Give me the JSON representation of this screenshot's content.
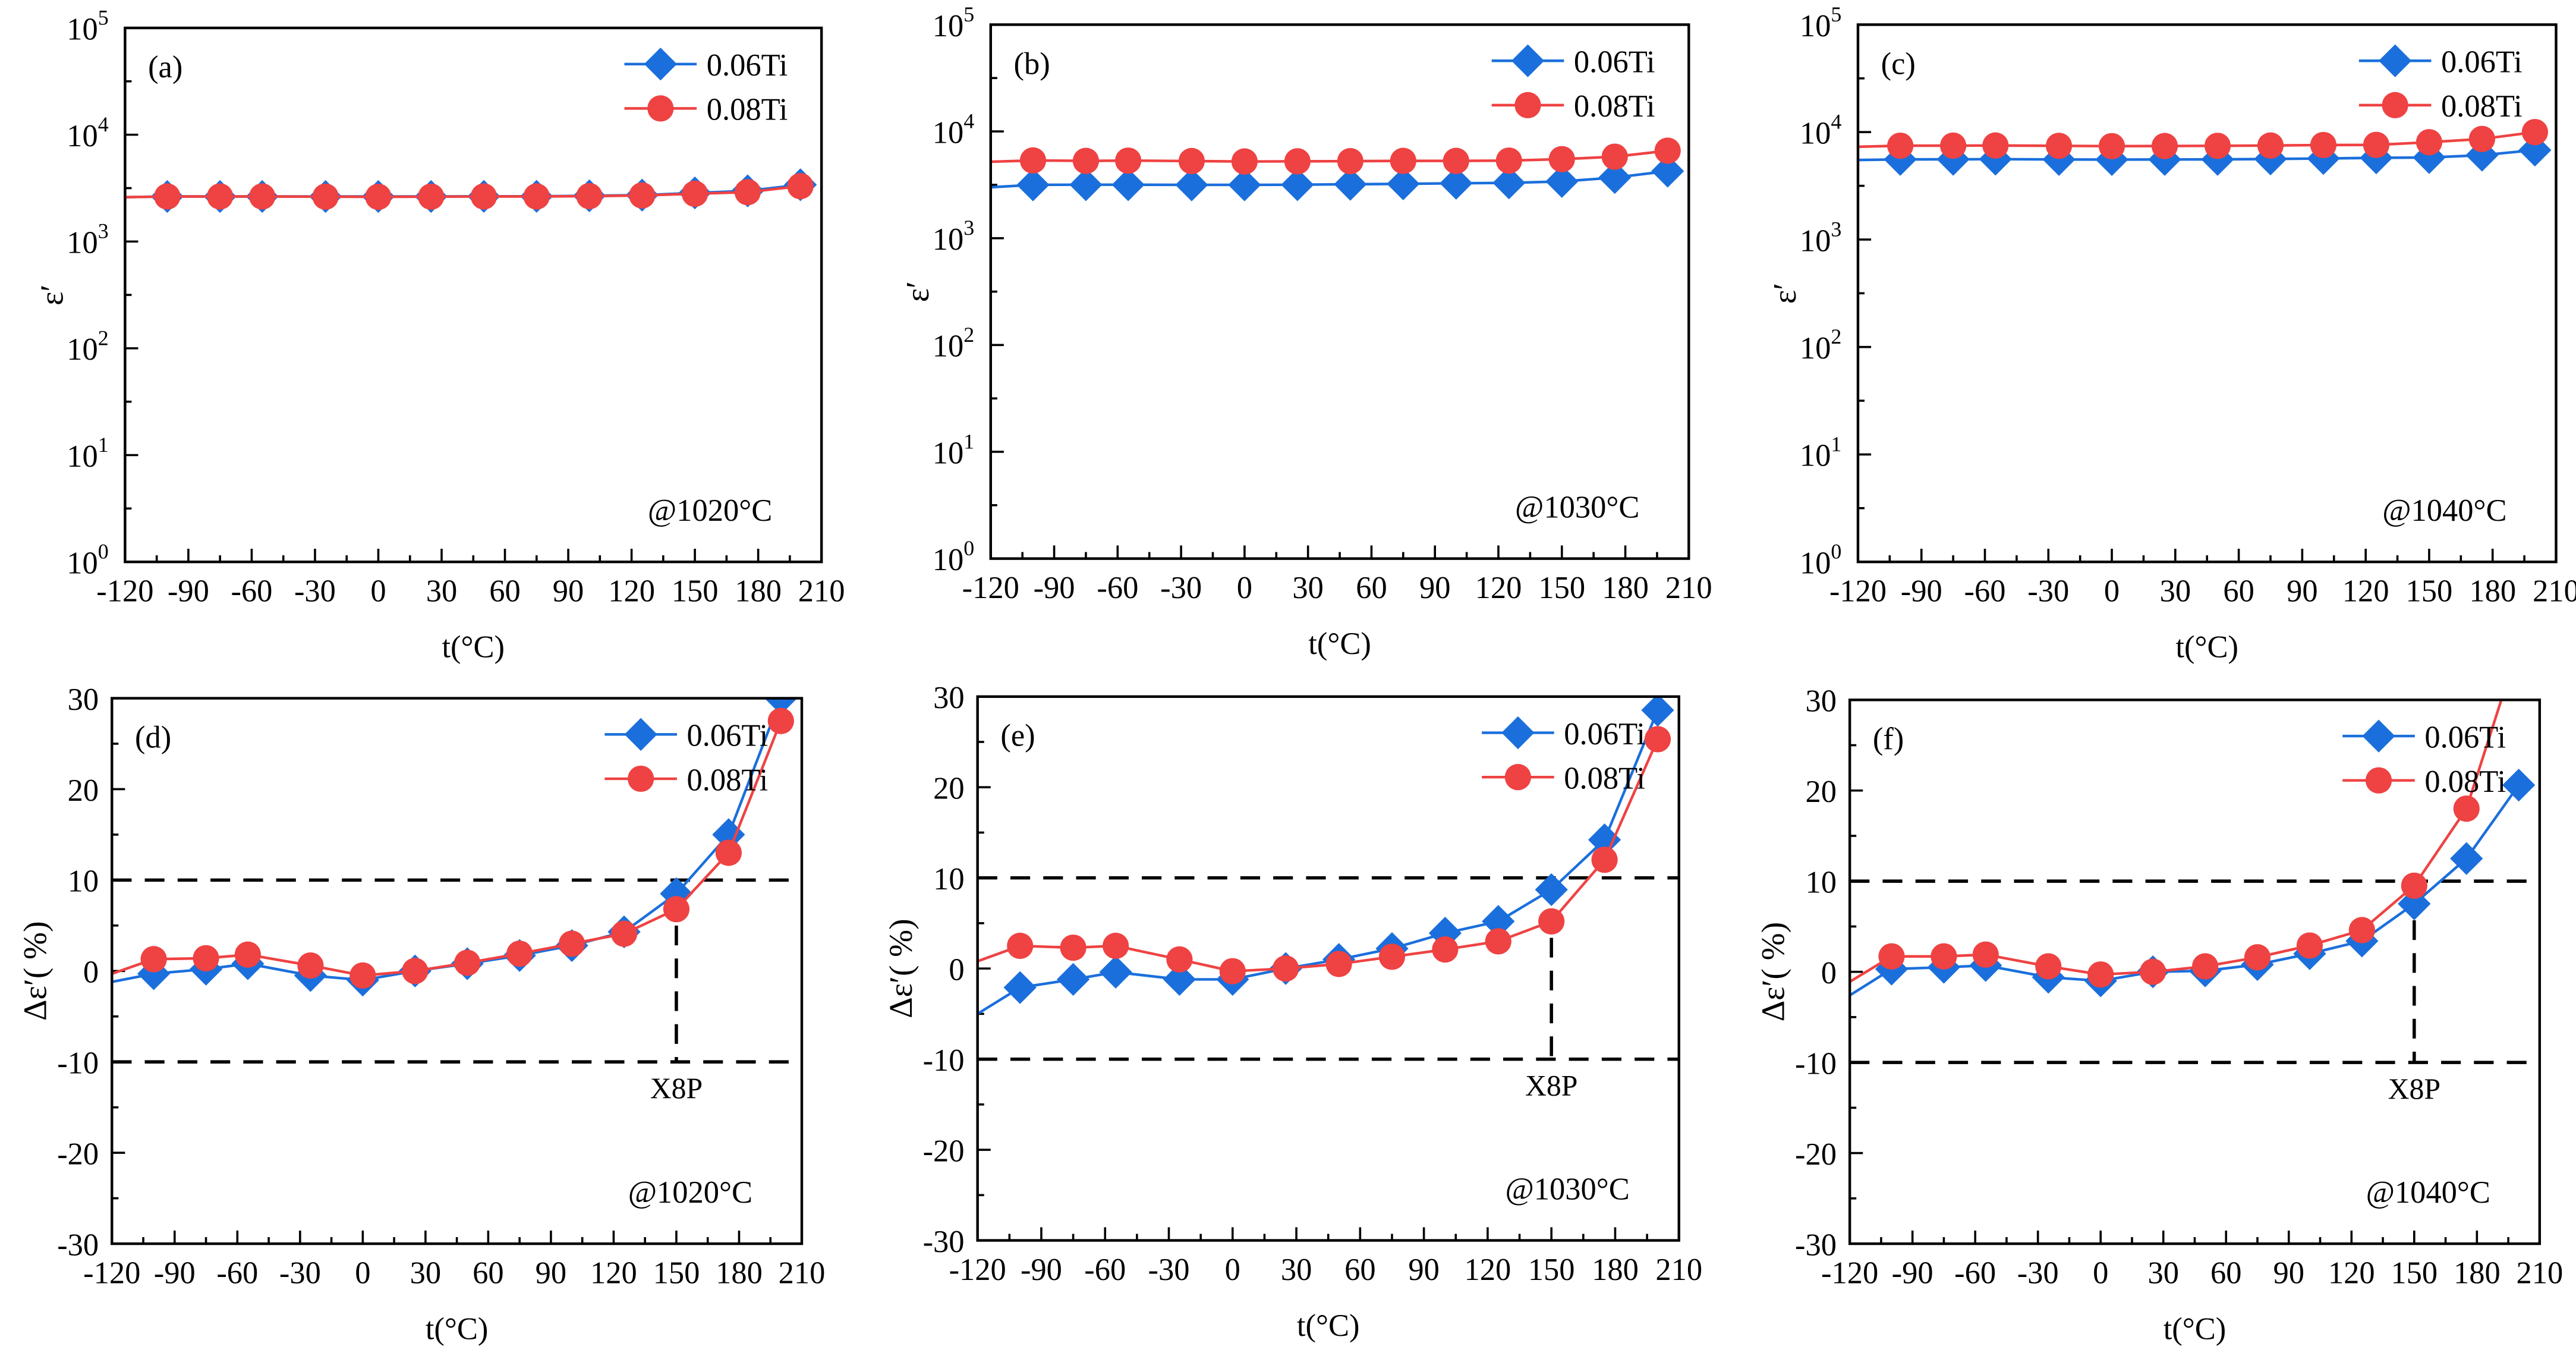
{
  "colors": {
    "s006": "#1b6fdc",
    "s008": "#ef4242",
    "axis": "#000000"
  },
  "chart_data": [
    {
      "panel": "(a)",
      "type": "line",
      "yscale": "log",
      "ylim": [
        1,
        100000
      ],
      "xlim": [
        -120,
        210
      ],
      "xlabel": "t(°C)",
      "ylabel": "ε′",
      "annotation": "@1020°C",
      "xticks": [
        "-120",
        "-90",
        "-60",
        "-30",
        "0",
        "30",
        "60",
        "90",
        "120",
        "150",
        "180",
        "210"
      ],
      "yticks": [
        {
          "base": "10",
          "exp": "0"
        },
        {
          "base": "10",
          "exp": "1"
        },
        {
          "base": "10",
          "exp": "2"
        },
        {
          "base": "10",
          "exp": "3"
        },
        {
          "base": "10",
          "exp": "4"
        },
        {
          "base": "10",
          "exp": "5"
        }
      ],
      "x": [
        -100,
        -75,
        -55,
        -25,
        0,
        25,
        50,
        75,
        100,
        125,
        150,
        175,
        200
      ],
      "series": [
        {
          "name": "0.06Ti",
          "marker": "diamond",
          "start_value": 2600,
          "values": [
            2640,
            2640,
            2640,
            2640,
            2640,
            2640,
            2650,
            2650,
            2680,
            2720,
            2850,
            2980,
            3400
          ]
        },
        {
          "name": "0.08Ti",
          "marker": "circle",
          "start_value": 2600,
          "values": [
            2640,
            2640,
            2640,
            2630,
            2620,
            2630,
            2640,
            2640,
            2660,
            2700,
            2800,
            2900,
            3300
          ]
        }
      ]
    },
    {
      "panel": "(b)",
      "type": "line",
      "yscale": "log",
      "ylim": [
        1,
        100000
      ],
      "xlim": [
        -120,
        210
      ],
      "xlabel": "t(°C)",
      "ylabel": "ε′",
      "annotation": "@1030°C",
      "xticks": [
        "-120",
        "-90",
        "-60",
        "-30",
        "0",
        "30",
        "60",
        "90",
        "120",
        "150",
        "180",
        "210"
      ],
      "yticks": [
        {
          "base": "10",
          "exp": "0"
        },
        {
          "base": "10",
          "exp": "1"
        },
        {
          "base": "10",
          "exp": "2"
        },
        {
          "base": "10",
          "exp": "3"
        },
        {
          "base": "10",
          "exp": "4"
        },
        {
          "base": "10",
          "exp": "5"
        }
      ],
      "x": [
        -100,
        -75,
        -55,
        -25,
        0,
        25,
        50,
        75,
        100,
        125,
        150,
        175,
        200
      ],
      "series": [
        {
          "name": "0.06Ti",
          "marker": "diamond",
          "start_value": 3000,
          "values": [
            3160,
            3170,
            3170,
            3160,
            3160,
            3170,
            3200,
            3230,
            3270,
            3300,
            3400,
            3700,
            4250
          ]
        },
        {
          "name": "0.08Ti",
          "marker": "circle",
          "start_value": 5200,
          "values": [
            5350,
            5300,
            5330,
            5280,
            5230,
            5250,
            5270,
            5300,
            5300,
            5330,
            5500,
            5800,
            6600
          ]
        }
      ]
    },
    {
      "panel": "(c)",
      "type": "line",
      "yscale": "log",
      "ylim": [
        1,
        100000
      ],
      "xlim": [
        -120,
        210
      ],
      "xlabel": "t(°C)",
      "ylabel": "ε′",
      "annotation": "@1040°C",
      "xticks": [
        "-120",
        "-90",
        "-60",
        "-30",
        "0",
        "30",
        "60",
        "90",
        "120",
        "150",
        "180",
        "210"
      ],
      "yticks": [
        {
          "base": "10",
          "exp": "0"
        },
        {
          "base": "10",
          "exp": "1"
        },
        {
          "base": "10",
          "exp": "2"
        },
        {
          "base": "10",
          "exp": "3"
        },
        {
          "base": "10",
          "exp": "4"
        },
        {
          "base": "10",
          "exp": "5"
        }
      ],
      "x": [
        -100,
        -75,
        -55,
        -25,
        0,
        25,
        50,
        75,
        100,
        125,
        150,
        175,
        200
      ],
      "series": [
        {
          "name": "0.06Ti",
          "marker": "diamond",
          "start_value": 5500,
          "values": [
            5570,
            5580,
            5600,
            5560,
            5550,
            5560,
            5570,
            5620,
            5680,
            5760,
            5800,
            6100,
            6800
          ]
        },
        {
          "name": "0.08Ti",
          "marker": "circle",
          "start_value": 7300,
          "values": [
            7470,
            7480,
            7500,
            7450,
            7400,
            7420,
            7450,
            7500,
            7580,
            7600,
            8050,
            8630,
            10000
          ]
        }
      ]
    },
    {
      "panel": "(d)",
      "type": "line",
      "yscale": "linear",
      "ylim": [
        -30,
        30
      ],
      "xlim": [
        -120,
        210
      ],
      "xlabel": "t(°C)",
      "ylabel": "Δε′( %)",
      "annotation": "@1020°C",
      "xticks": [
        "-120",
        "-90",
        "-60",
        "-30",
        "0",
        "30",
        "60",
        "90",
        "120",
        "150",
        "180",
        "210"
      ],
      "yticks": [
        "-30",
        "-20",
        "-10",
        "0",
        "10",
        "20",
        "30"
      ],
      "limits": [
        -10,
        10
      ],
      "marker_line_x": 150,
      "marker_label": "X8P",
      "x": [
        -100,
        -75,
        -55,
        -25,
        0,
        25,
        50,
        75,
        100,
        125,
        150,
        175,
        200
      ],
      "series": [
        {
          "name": "0.06Ti",
          "marker": "diamond",
          "start_value": -1.2,
          "values": [
            -0.3,
            0.2,
            0.8,
            -0.5,
            -1.0,
            0,
            0.8,
            1.7,
            2.8,
            4.3,
            8.5,
            15,
            30
          ]
        },
        {
          "name": "0.08Ti",
          "marker": "circle",
          "start_value": -0.3,
          "values": [
            1.3,
            1.4,
            1.8,
            0.6,
            -0.5,
            0,
            0.9,
            1.9,
            3.0,
            4.1,
            6.8,
            13,
            27.5
          ]
        }
      ]
    },
    {
      "panel": "(e)",
      "type": "line",
      "yscale": "linear",
      "ylim": [
        -30,
        30
      ],
      "xlim": [
        -120,
        210
      ],
      "xlabel": "t(°C)",
      "ylabel": "Δε′( %)",
      "annotation": "@1030°C",
      "xticks": [
        "-120",
        "-90",
        "-60",
        "-30",
        "0",
        "30",
        "60",
        "90",
        "120",
        "150",
        "180",
        "210"
      ],
      "yticks": [
        "-30",
        "-20",
        "-10",
        "0",
        "10",
        "20",
        "30"
      ],
      "limits": [
        -10,
        10
      ],
      "marker_line_x": 150,
      "marker_label": "X8P",
      "x": [
        -100,
        -75,
        -55,
        -25,
        0,
        25,
        50,
        75,
        100,
        125,
        150,
        175,
        200
      ],
      "series": [
        {
          "name": "0.06Ti",
          "marker": "diamond",
          "start_value": -5.0,
          "values": [
            -2.1,
            -1.2,
            -0.4,
            -1.2,
            -1.2,
            0,
            1.0,
            2.2,
            3.9,
            5.2,
            8.7,
            14.2,
            28.5
          ]
        },
        {
          "name": "0.08Ti",
          "marker": "circle",
          "start_value": 0.8,
          "values": [
            2.5,
            2.3,
            2.5,
            1.0,
            -0.3,
            0,
            0.5,
            1.3,
            2.1,
            3.0,
            5.2,
            12,
            25.3
          ]
        }
      ]
    },
    {
      "panel": "(f)",
      "type": "line",
      "yscale": "linear",
      "ylim": [
        -30,
        30
      ],
      "xlim": [
        -120,
        210
      ],
      "xlabel": "t(°C)",
      "ylabel": "Δε′( %)",
      "annotation": "@1040°C",
      "xticks": [
        "-120",
        "-90",
        "-60",
        "-30",
        "0",
        "30",
        "60",
        "90",
        "120",
        "150",
        "180",
        "210"
      ],
      "yticks": [
        "-30",
        "-20",
        "-10",
        "0",
        "10",
        "20",
        "30"
      ],
      "limits": [
        -10,
        10
      ],
      "marker_line_x": 150,
      "marker_label": "X8P",
      "x": [
        -100,
        -75,
        -55,
        -25,
        0,
        25,
        50,
        75,
        100,
        125,
        150,
        175,
        200
      ],
      "series": [
        {
          "name": "0.06Ti",
          "marker": "diamond",
          "start_value": -2.6,
          "values": [
            0.3,
            0.5,
            0.7,
            -0.6,
            -1.0,
            0,
            0.1,
            0.8,
            2.0,
            3.4,
            7.5,
            12.5,
            20.6
          ]
        },
        {
          "name": "0.08Ti",
          "marker": "circle",
          "start_value": -1.1,
          "values": [
            1.7,
            1.7,
            1.9,
            0.6,
            -0.3,
            0,
            0.6,
            1.6,
            2.9,
            4.6,
            9.5,
            18,
            36
          ]
        }
      ]
    }
  ]
}
